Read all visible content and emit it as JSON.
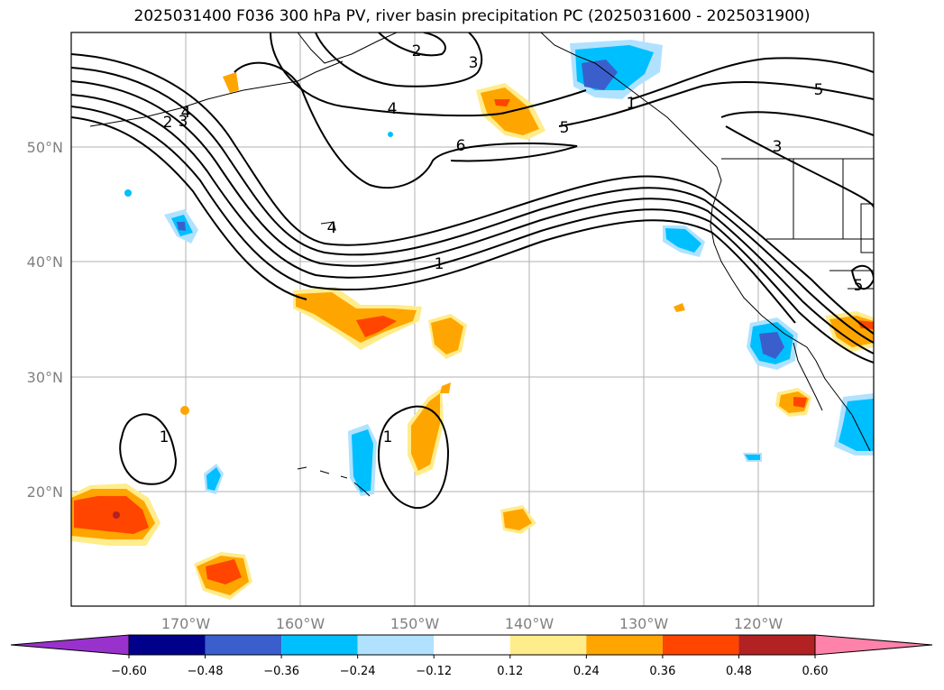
{
  "title": "2025031400 F036 300 hPa PV, river basin precipitation PC (2025031600 - 2025031900)",
  "lon_ticks": [
    "170°W",
    "160°W",
    "150°W",
    "140°W",
    "130°W",
    "120°W"
  ],
  "lat_ticks": [
    "50°N",
    "40°N",
    "30°N",
    "20°N"
  ],
  "colorbar": {
    "levels": [
      "−0.60",
      "−0.48",
      "−0.36",
      "−0.24",
      "−0.12",
      "0.12",
      "0.24",
      "0.36",
      "0.48",
      "0.60"
    ],
    "colors": [
      "#9932cc",
      "#00008b",
      "#3a5fcd",
      "#00bfff",
      "#b0e2ff",
      "#ffffff",
      "#ffec8b",
      "#ffa500",
      "#ff4500",
      "#b22222",
      "#ff82ab"
    ]
  },
  "contour_labels": [
    "2",
    "3",
    "4",
    "5",
    "6",
    "1",
    "3",
    "4",
    "5",
    "4",
    "2",
    "3",
    "1",
    "1",
    "1",
    "5"
  ]
}
